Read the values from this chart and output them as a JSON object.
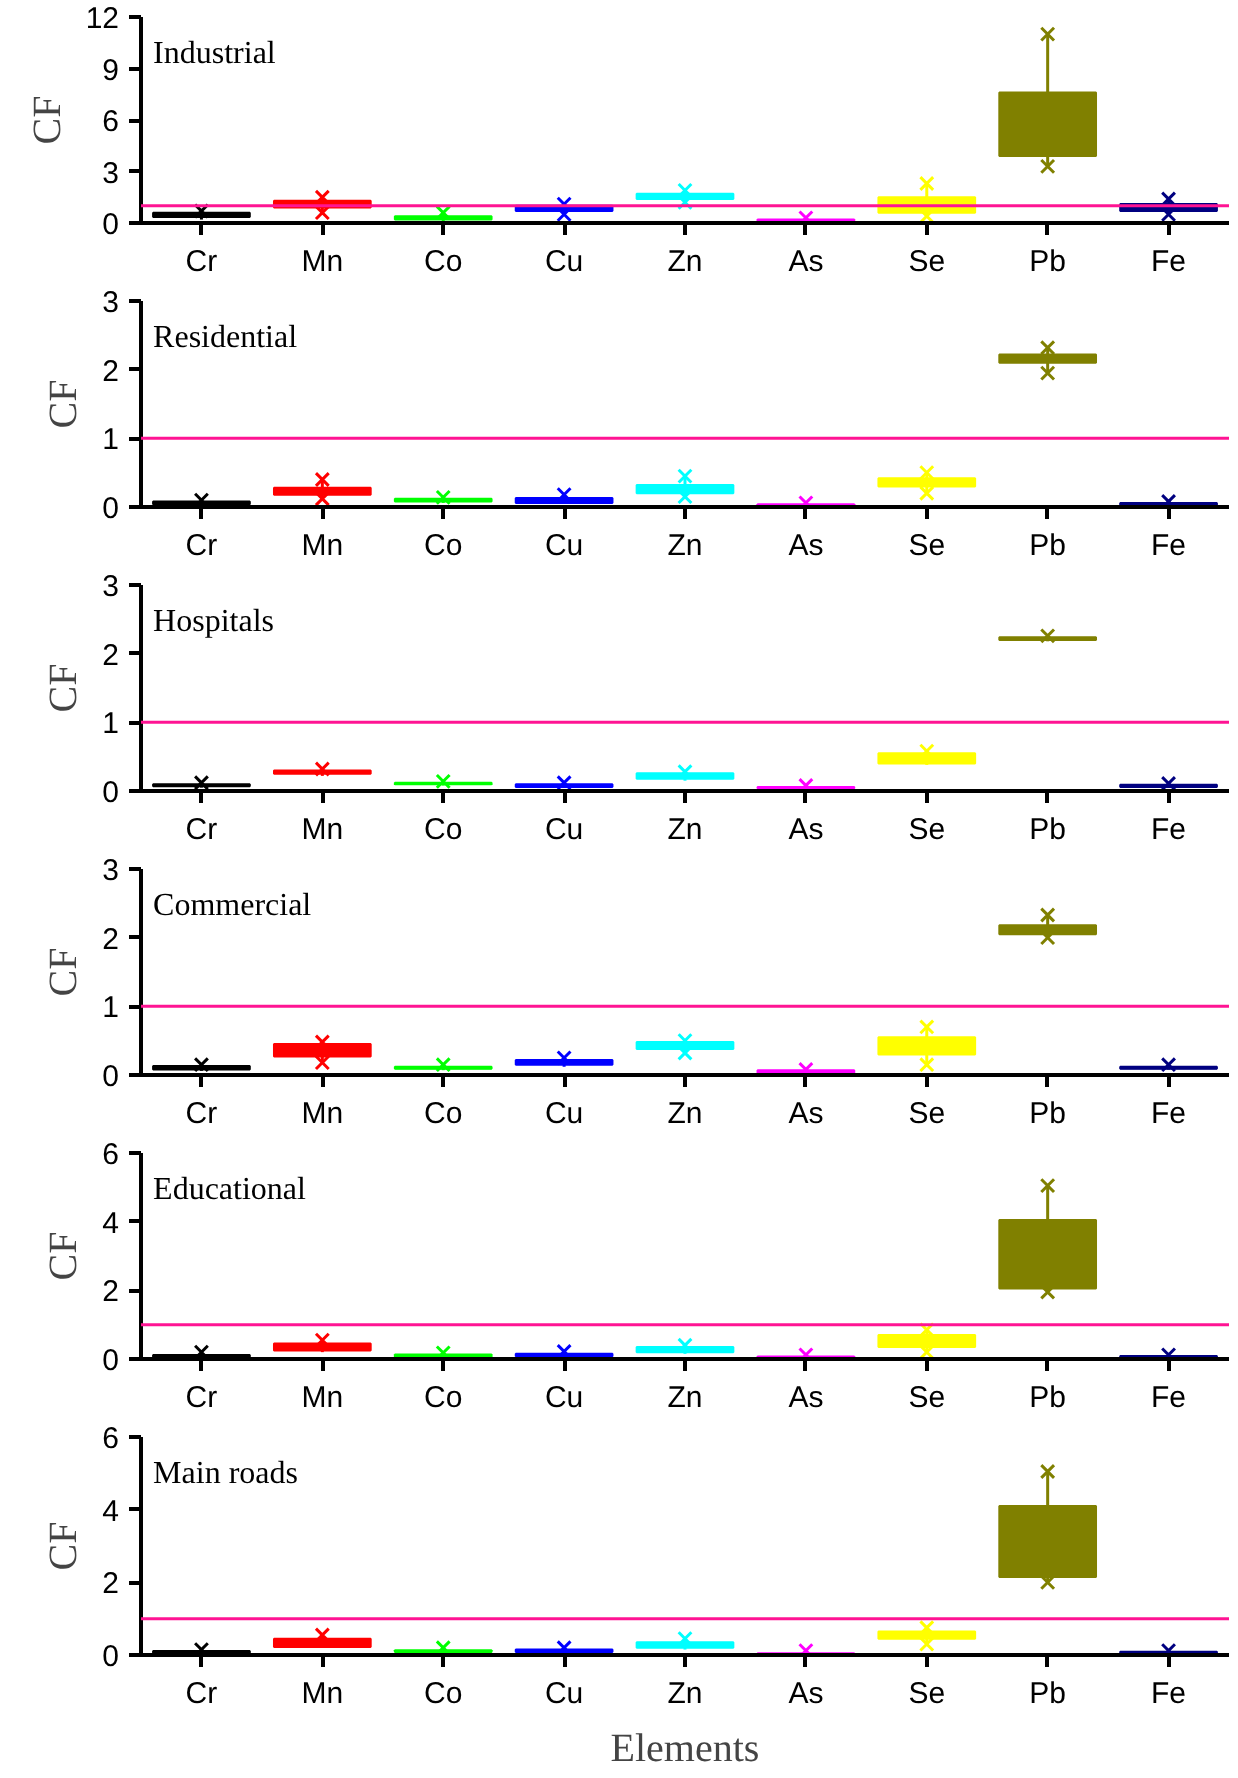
{
  "chart_data": [
    {
      "type": "box",
      "title": "Industrial",
      "ylabel": "CF",
      "categories": [
        "Cr",
        "Mn",
        "Co",
        "Cu",
        "Zn",
        "As",
        "Se",
        "Pb",
        "Fe"
      ],
      "colors": [
        "#000000",
        "#ff0000",
        "#00ff00",
        "#0000ff",
        "#00ffff",
        "#ff00ff",
        "#ffff00",
        "#808000",
        "#000080"
      ],
      "ylim": [
        0,
        12
      ],
      "yticks": [
        0,
        3,
        6,
        9,
        12
      ],
      "grid": false,
      "marker": "cross",
      "ref_lines": [
        {
          "axis": "y",
          "value": 1,
          "color": "#ff1493"
        }
      ],
      "boxes": [
        {
          "low": 0.2,
          "q1": 0.35,
          "median": 0.5,
          "q3": 0.6,
          "high": 0.7,
          "outliers": [
            0.7
          ]
        },
        {
          "low": 0.6,
          "q1": 0.9,
          "median": 1.1,
          "q3": 1.3,
          "high": 1.5,
          "outliers": [
            0.6,
            1.5
          ]
        },
        {
          "low": 0.1,
          "q1": 0.2,
          "median": 0.3,
          "q3": 0.4,
          "high": 0.6,
          "outliers": [
            0.6
          ]
        },
        {
          "low": 0.5,
          "q1": 0.7,
          "median": 0.85,
          "q3": 1.0,
          "high": 1.1,
          "outliers": [
            0.5,
            1.1
          ]
        },
        {
          "low": 1.2,
          "q1": 1.4,
          "median": 1.55,
          "q3": 1.7,
          "high": 1.9,
          "outliers": [
            1.2,
            1.9
          ]
        },
        {
          "low": 0.05,
          "q1": 0.1,
          "median": 0.15,
          "q3": 0.2,
          "high": 0.3,
          "outliers": [
            0.3
          ]
        },
        {
          "low": 0.4,
          "q1": 0.6,
          "median": 1.0,
          "q3": 1.5,
          "high": 2.3,
          "outliers": [
            0.4,
            2.3
          ]
        },
        {
          "low": 3.3,
          "q1": 3.9,
          "median": 5.5,
          "q3": 7.6,
          "high": 11.0,
          "outliers": [
            3.3,
            11.0
          ]
        },
        {
          "low": 0.5,
          "q1": 0.7,
          "median": 0.9,
          "q3": 1.1,
          "high": 1.4,
          "outliers": [
            0.5,
            1.4
          ]
        }
      ]
    },
    {
      "type": "box",
      "title": "Residential",
      "ylabel": "CF",
      "categories": [
        "Cr",
        "Mn",
        "Co",
        "Cu",
        "Zn",
        "As",
        "Se",
        "Pb",
        "Fe"
      ],
      "colors": [
        "#000000",
        "#ff0000",
        "#00ff00",
        "#0000ff",
        "#00ffff",
        "#ff00ff",
        "#ffff00",
        "#808000",
        "#000080"
      ],
      "ylim": [
        0,
        3
      ],
      "yticks": [
        0,
        1,
        2,
        3
      ],
      "grid": false,
      "marker": "cross",
      "ref_lines": [
        {
          "axis": "y",
          "value": 1,
          "color": "#ff1493"
        }
      ],
      "boxes": [
        {
          "low": 0.02,
          "q1": 0.04,
          "median": 0.06,
          "q3": 0.08,
          "high": 0.1,
          "outliers": [
            0.1
          ]
        },
        {
          "low": 0.12,
          "q1": 0.18,
          "median": 0.24,
          "q3": 0.28,
          "high": 0.4,
          "outliers": [
            0.12,
            0.4
          ]
        },
        {
          "low": 0.06,
          "q1": 0.08,
          "median": 0.1,
          "q3": 0.12,
          "high": 0.14,
          "outliers": [
            0.14
          ]
        },
        {
          "low": 0.05,
          "q1": 0.06,
          "median": 0.1,
          "q3": 0.13,
          "high": 0.18,
          "outliers": [
            0.18
          ]
        },
        {
          "low": 0.15,
          "q1": 0.2,
          "median": 0.25,
          "q3": 0.32,
          "high": 0.45,
          "outliers": [
            0.15,
            0.45
          ]
        },
        {
          "low": 0.01,
          "q1": 0.02,
          "median": 0.03,
          "q3": 0.04,
          "high": 0.06,
          "outliers": [
            0.06
          ]
        },
        {
          "low": 0.2,
          "q1": 0.3,
          "median": 0.36,
          "q3": 0.42,
          "high": 0.5,
          "outliers": [
            0.2,
            0.5
          ]
        },
        {
          "low": 1.95,
          "q1": 2.1,
          "median": 2.15,
          "q3": 2.22,
          "high": 2.32,
          "outliers": [
            1.95,
            2.32
          ]
        },
        {
          "low": 0.02,
          "q1": 0.03,
          "median": 0.05,
          "q3": 0.06,
          "high": 0.08,
          "outliers": [
            0.08
          ]
        }
      ]
    },
    {
      "type": "box",
      "title": "Hospitals",
      "ylabel": "CF",
      "categories": [
        "Cr",
        "Mn",
        "Co",
        "Cu",
        "Zn",
        "As",
        "Se",
        "Pb",
        "Fe"
      ],
      "colors": [
        "#000000",
        "#ff0000",
        "#00ff00",
        "#0000ff",
        "#00ffff",
        "#ff00ff",
        "#ffff00",
        "#808000",
        "#000080"
      ],
      "ylim": [
        0,
        3
      ],
      "yticks": [
        0,
        1,
        2,
        3
      ],
      "grid": false,
      "marker": "cross",
      "ref_lines": [
        {
          "axis": "y",
          "value": 1,
          "color": "#ff1493"
        }
      ],
      "boxes": [
        {
          "low": 0.05,
          "q1": 0.07,
          "median": 0.08,
          "q3": 0.1,
          "high": 0.12,
          "outliers": [
            0.12
          ]
        },
        {
          "low": 0.22,
          "q1": 0.25,
          "median": 0.27,
          "q3": 0.3,
          "high": 0.32,
          "outliers": [
            0.32
          ]
        },
        {
          "low": 0.08,
          "q1": 0.1,
          "median": 0.11,
          "q3": 0.12,
          "high": 0.14,
          "outliers": [
            0.14
          ]
        },
        {
          "low": 0.05,
          "q1": 0.06,
          "median": 0.08,
          "q3": 0.1,
          "high": 0.12,
          "outliers": [
            0.12
          ]
        },
        {
          "low": 0.15,
          "q1": 0.18,
          "median": 0.2,
          "q3": 0.26,
          "high": 0.28,
          "outliers": [
            0.28
          ]
        },
        {
          "low": 0.03,
          "q1": 0.04,
          "median": 0.05,
          "q3": 0.06,
          "high": 0.08,
          "outliers": [
            0.08
          ]
        },
        {
          "low": 0.38,
          "q1": 0.4,
          "median": 0.47,
          "q3": 0.55,
          "high": 0.58,
          "outliers": [
            0.58
          ]
        },
        {
          "low": 2.18,
          "q1": 2.2,
          "median": 2.22,
          "q3": 2.24,
          "high": 2.26,
          "outliers": [
            2.26
          ]
        },
        {
          "low": 0.05,
          "q1": 0.06,
          "median": 0.08,
          "q3": 0.09,
          "high": 0.11,
          "outliers": [
            0.11
          ]
        }
      ]
    },
    {
      "type": "box",
      "title": "Commercial",
      "ylabel": "CF",
      "categories": [
        "Cr",
        "Mn",
        "Co",
        "Cu",
        "Zn",
        "As",
        "Se",
        "Pb",
        "Fe"
      ],
      "colors": [
        "#000000",
        "#ff0000",
        "#00ff00",
        "#0000ff",
        "#00ffff",
        "#ff00ff",
        "#ffff00",
        "#808000",
        "#000080"
      ],
      "ylim": [
        0,
        3
      ],
      "yticks": [
        0,
        1,
        2,
        3
      ],
      "grid": false,
      "marker": "cross",
      "ref_lines": [
        {
          "axis": "y",
          "value": 1,
          "color": "#ff1493"
        }
      ],
      "boxes": [
        {
          "low": 0.06,
          "q1": 0.08,
          "median": 0.1,
          "q3": 0.13,
          "high": 0.15,
          "outliers": [
            0.15
          ]
        },
        {
          "low": 0.18,
          "q1": 0.27,
          "median": 0.35,
          "q3": 0.45,
          "high": 0.48,
          "outliers": [
            0.18,
            0.48
          ]
        },
        {
          "low": 0.07,
          "q1": 0.09,
          "median": 0.1,
          "q3": 0.12,
          "high": 0.15,
          "outliers": [
            0.15
          ]
        },
        {
          "low": 0.12,
          "q1": 0.15,
          "median": 0.18,
          "q3": 0.22,
          "high": 0.25,
          "outliers": [
            0.25
          ]
        },
        {
          "low": 0.32,
          "q1": 0.38,
          "median": 0.42,
          "q3": 0.48,
          "high": 0.5,
          "outliers": [
            0.32,
            0.5
          ]
        },
        {
          "low": 0.02,
          "q1": 0.03,
          "median": 0.05,
          "q3": 0.07,
          "high": 0.08,
          "outliers": [
            0.08
          ]
        },
        {
          "low": 0.15,
          "q1": 0.3,
          "median": 0.42,
          "q3": 0.55,
          "high": 0.7,
          "outliers": [
            0.15,
            0.7
          ]
        },
        {
          "low": 2.0,
          "q1": 2.05,
          "median": 2.1,
          "q3": 2.18,
          "high": 2.33,
          "outliers": [
            2.0,
            2.33
          ]
        },
        {
          "low": 0.08,
          "q1": 0.09,
          "median": 0.1,
          "q3": 0.12,
          "high": 0.15,
          "outliers": [
            0.15
          ]
        }
      ]
    },
    {
      "type": "box",
      "title": "Educational",
      "ylabel": "CF",
      "categories": [
        "Cr",
        "Mn",
        "Co",
        "Cu",
        "Zn",
        "As",
        "Se",
        "Pb",
        "Fe"
      ],
      "colors": [
        "#000000",
        "#ff0000",
        "#00ff00",
        "#0000ff",
        "#00ffff",
        "#ff00ff",
        "#ffff00",
        "#808000",
        "#000080"
      ],
      "ylim": [
        0,
        6
      ],
      "yticks": [
        0,
        2,
        4,
        6
      ],
      "grid": false,
      "marker": "cross",
      "ref_lines": [
        {
          "axis": "y",
          "value": 1,
          "color": "#ff1493"
        }
      ],
      "boxes": [
        {
          "low": 0.05,
          "q1": 0.08,
          "median": 0.1,
          "q3": 0.12,
          "high": 0.2,
          "outliers": [
            0.2
          ]
        },
        {
          "low": 0.2,
          "q1": 0.25,
          "median": 0.35,
          "q3": 0.45,
          "high": 0.55,
          "outliers": [
            0.55
          ]
        },
        {
          "low": 0.05,
          "q1": 0.08,
          "median": 0.1,
          "q3": 0.13,
          "high": 0.18,
          "outliers": [
            0.18
          ]
        },
        {
          "low": 0.05,
          "q1": 0.08,
          "median": 0.1,
          "q3": 0.15,
          "high": 0.22,
          "outliers": [
            0.22
          ]
        },
        {
          "low": 0.15,
          "q1": 0.2,
          "median": 0.28,
          "q3": 0.35,
          "high": 0.4,
          "outliers": [
            0.4
          ]
        },
        {
          "low": 0.02,
          "q1": 0.03,
          "median": 0.05,
          "q3": 0.07,
          "high": 0.12,
          "outliers": [
            0.12
          ]
        },
        {
          "low": 0.2,
          "q1": 0.35,
          "median": 0.5,
          "q3": 0.7,
          "high": 0.85,
          "outliers": [
            0.2,
            0.85
          ]
        },
        {
          "low": 1.95,
          "q1": 2.05,
          "median": 3.0,
          "q3": 4.05,
          "high": 5.05,
          "outliers": [
            1.95,
            5.05
          ]
        },
        {
          "low": 0.03,
          "q1": 0.05,
          "median": 0.07,
          "q3": 0.09,
          "high": 0.12,
          "outliers": [
            0.12
          ]
        }
      ]
    },
    {
      "type": "box",
      "title": "Main roads",
      "ylabel": "CF",
      "xlabel": "Elements",
      "categories": [
        "Cr",
        "Mn",
        "Co",
        "Cu",
        "Zn",
        "As",
        "Se",
        "Pb",
        "Fe"
      ],
      "colors": [
        "#000000",
        "#ff0000",
        "#00ff00",
        "#0000ff",
        "#00ffff",
        "#ff00ff",
        "#ffff00",
        "#808000",
        "#000080"
      ],
      "ylim": [
        0,
        6
      ],
      "yticks": [
        0,
        2,
        4,
        6
      ],
      "grid": false,
      "marker": "cross",
      "ref_lines": [
        {
          "axis": "y",
          "value": 1,
          "color": "#ff1493"
        }
      ],
      "boxes": [
        {
          "low": 0.05,
          "q1": 0.07,
          "median": 0.09,
          "q3": 0.11,
          "high": 0.15,
          "outliers": [
            0.15
          ]
        },
        {
          "low": 0.2,
          "q1": 0.22,
          "median": 0.3,
          "q3": 0.45,
          "high": 0.55,
          "outliers": [
            0.55
          ]
        },
        {
          "low": 0.05,
          "q1": 0.08,
          "median": 0.1,
          "q3": 0.13,
          "high": 0.2,
          "outliers": [
            0.2
          ]
        },
        {
          "low": 0.05,
          "q1": 0.08,
          "median": 0.1,
          "q3": 0.15,
          "high": 0.2,
          "outliers": [
            0.2
          ]
        },
        {
          "low": 0.15,
          "q1": 0.2,
          "median": 0.25,
          "q3": 0.35,
          "high": 0.45,
          "outliers": [
            0.45
          ]
        },
        {
          "low": 0.01,
          "q1": 0.02,
          "median": 0.03,
          "q3": 0.05,
          "high": 0.05,
          "outliers": [
            0.12
          ]
        },
        {
          "low": 0.3,
          "q1": 0.45,
          "median": 0.55,
          "q3": 0.65,
          "high": 0.75,
          "outliers": [
            0.3,
            0.75
          ]
        },
        {
          "low": 2.0,
          "q1": 2.15,
          "median": 3.0,
          "q3": 4.1,
          "high": 5.05,
          "outliers": [
            2.0,
            5.05
          ]
        },
        {
          "low": 0.03,
          "q1": 0.05,
          "median": 0.07,
          "q3": 0.09,
          "high": 0.12,
          "outliers": [
            0.12
          ]
        }
      ]
    }
  ]
}
